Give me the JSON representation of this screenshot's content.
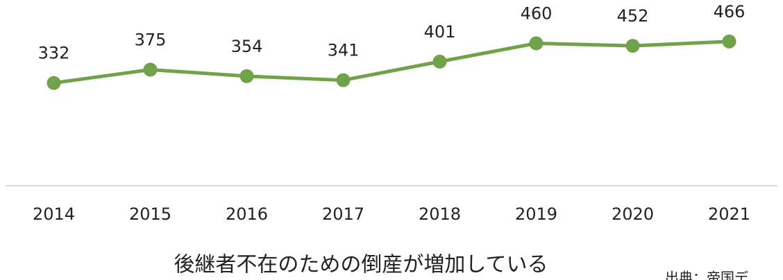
{
  "chart_data": {
    "type": "line",
    "categories": [
      "2014",
      "2015",
      "2016",
      "2017",
      "2018",
      "2019",
      "2020",
      "2021"
    ],
    "values": [
      332,
      375,
      354,
      341,
      401,
      460,
      452,
      466
    ],
    "color": "#70a24a",
    "ylim": [
      0,
      600
    ],
    "caption": "後継者不在のための倒産が増加している",
    "source": "出典：帝国デ"
  }
}
